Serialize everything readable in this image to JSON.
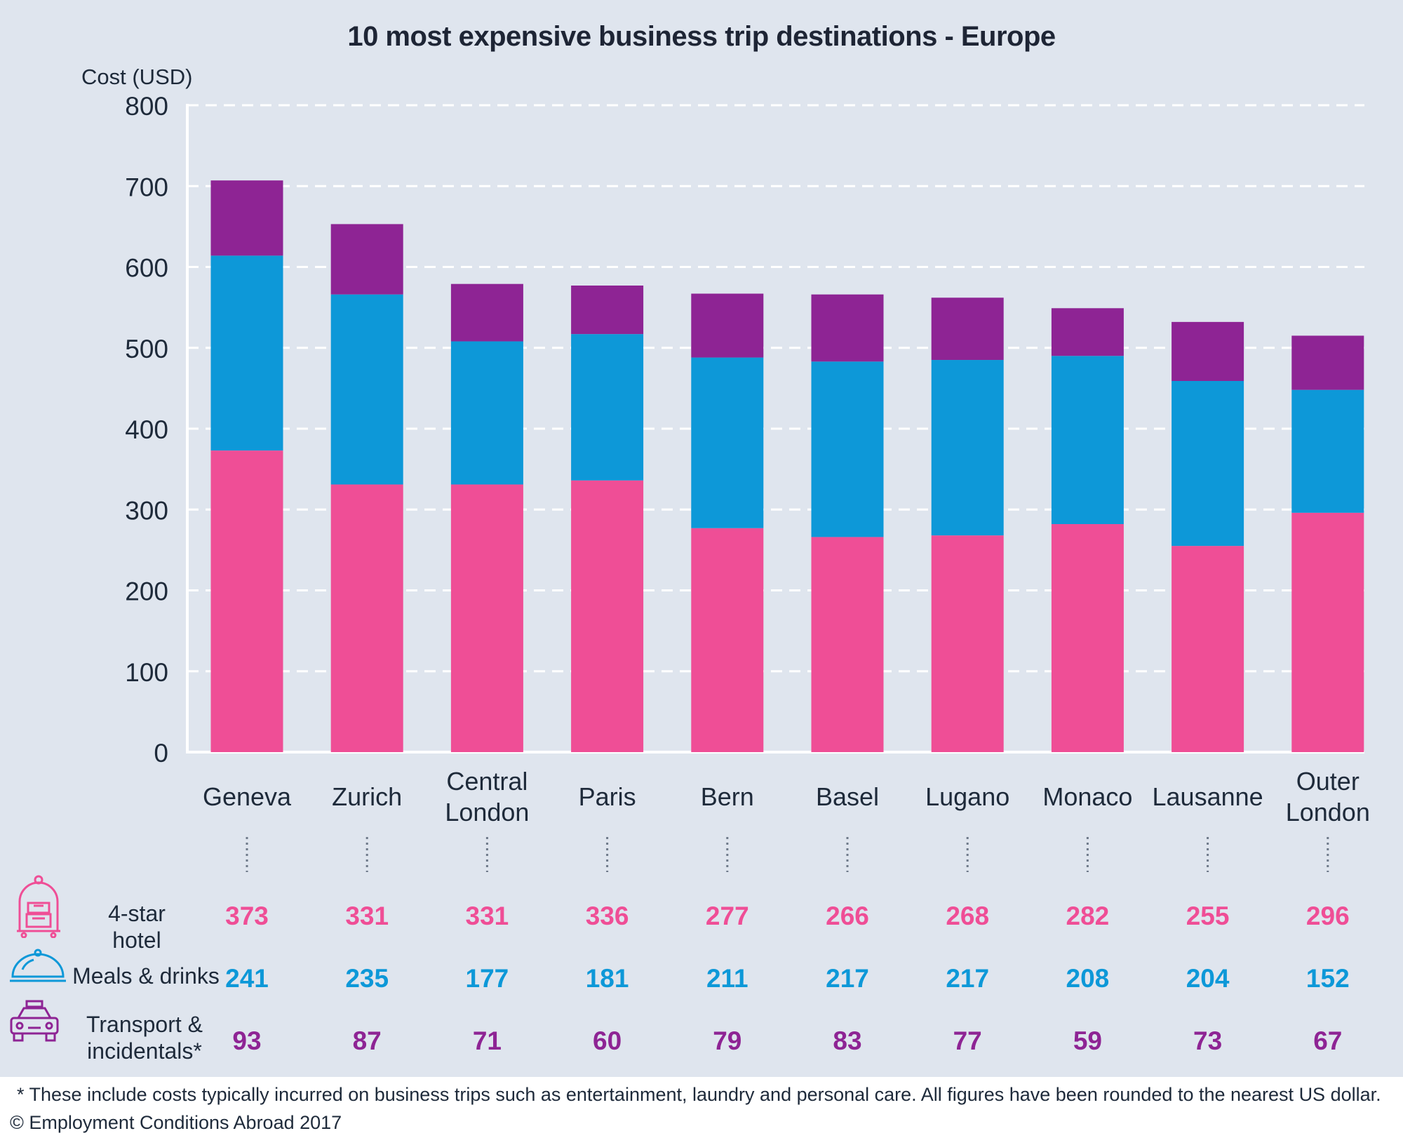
{
  "chart_data": {
    "type": "bar",
    "stacked": true,
    "title": "10 most expensive business trip destinations - Europe",
    "ylabel": "Cost (USD)",
    "xlabel": "",
    "ylim": [
      0,
      800
    ],
    "yticks": [
      0,
      100,
      200,
      300,
      400,
      500,
      600,
      700,
      800
    ],
    "grid": true,
    "categories": [
      [
        "Geneva"
      ],
      [
        "Zurich"
      ],
      [
        "Central",
        "London"
      ],
      [
        "Paris"
      ],
      [
        "Bern"
      ],
      [
        "Basel"
      ],
      [
        "Lugano"
      ],
      [
        "Monaco"
      ],
      [
        "Lausanne"
      ],
      [
        "Outer",
        "London"
      ]
    ],
    "series": [
      {
        "name": "4-star hotel",
        "color": "#ef4e96",
        "icon": "hotel-trolley-icon",
        "values": [
          373,
          331,
          331,
          336,
          277,
          266,
          268,
          282,
          255,
          296
        ]
      },
      {
        "name": "Meals & drinks",
        "color": "#0d98d8",
        "icon": "food-cloche-icon",
        "values": [
          241,
          235,
          177,
          181,
          211,
          217,
          217,
          208,
          204,
          152
        ]
      },
      {
        "name": "Transport & incidentals*",
        "color": "#8e2494",
        "icon": "taxi-icon",
        "values": [
          93,
          87,
          71,
          60,
          79,
          83,
          77,
          59,
          73,
          67
        ]
      }
    ]
  },
  "footnote": "* These include costs typically incurred on business trips such as entertainment, laundry and personal care. All figures have been rounded to the nearest US dollar.",
  "copyright": "© Employment Conditions Abroad 2017",
  "colors": {
    "background": "#dfe5ee",
    "grid": "#ffffff",
    "text": "#1e2a3a"
  }
}
